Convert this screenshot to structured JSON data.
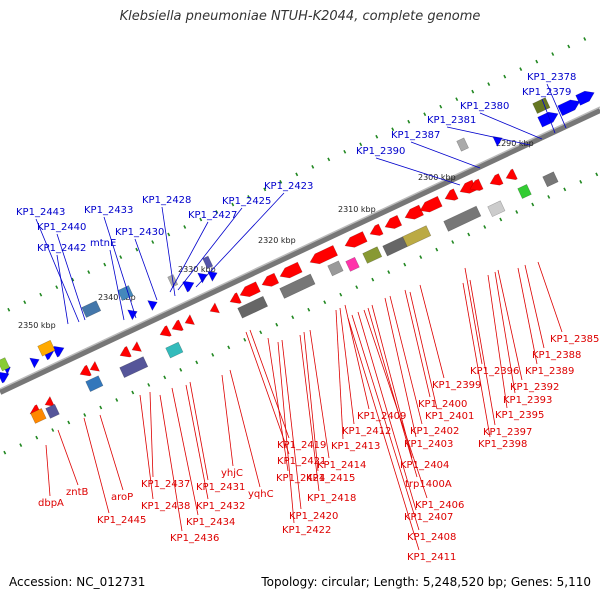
{
  "title": "Klebsiella pneumoniae NTUH-K2044, complete genome",
  "footer": {
    "accession": "Accession: NC_012731",
    "summary": "Topology: circular; Length: 5,248,520 bp; Genes: 5,110"
  },
  "colors": {
    "forward_label": "#0000cc",
    "reverse_label": "#dd0000",
    "forward_gene": "#0000ff",
    "reverse_gene": "#ff0000",
    "tick": "#228822",
    "backbone": "#888888"
  },
  "scale_labels": [
    "2290 kbp",
    "2300 kbp",
    "2310 kbp",
    "2320 kbp",
    "2330 kbp",
    "2340 kbp",
    "2350 kbp"
  ],
  "forward_labels": [
    "KP1_2378",
    "KP1_2379",
    "KP1_2380",
    "KP1_2381",
    "KP1_2387",
    "KP1_2390",
    "KP1_2423",
    "KP1_2425",
    "KP1_2427",
    "KP1_2428",
    "KP1_2433",
    "KP1_2430",
    "mtnE",
    "KP1_2443",
    "KP1_2440",
    "KP1_2442"
  ],
  "reverse_labels": [
    "KP1_2385",
    "KP1_2388",
    "KP1_2389",
    "KP1_2392",
    "KP1_2396",
    "KP1_2393",
    "KP1_2395",
    "KP1_2399",
    "KP1_2397",
    "KP1_2398",
    "KP1_2400",
    "KP1_2401",
    "KP1_2402",
    "KP1_2403",
    "KP1_2409",
    "KP1_2412",
    "KP1_2413",
    "KP1_2404",
    "trp1400A",
    "KP1_2406",
    "KP1_2407",
    "KP1_2408",
    "KP1_2411",
    "KP1_2419",
    "KP1_2421",
    "KP1_2414",
    "KP1_2415",
    "KP1_2418",
    "KP1_2424",
    "KP1_2420",
    "KP1_2422",
    "yhjC",
    "yqhC",
    "KP1_2431",
    "KP1_2432",
    "KP1_2434",
    "KP1_2437",
    "KP1_2438",
    "KP1_2436",
    "aroP",
    "KP1_2445",
    "zntB",
    "dbpA"
  ]
}
